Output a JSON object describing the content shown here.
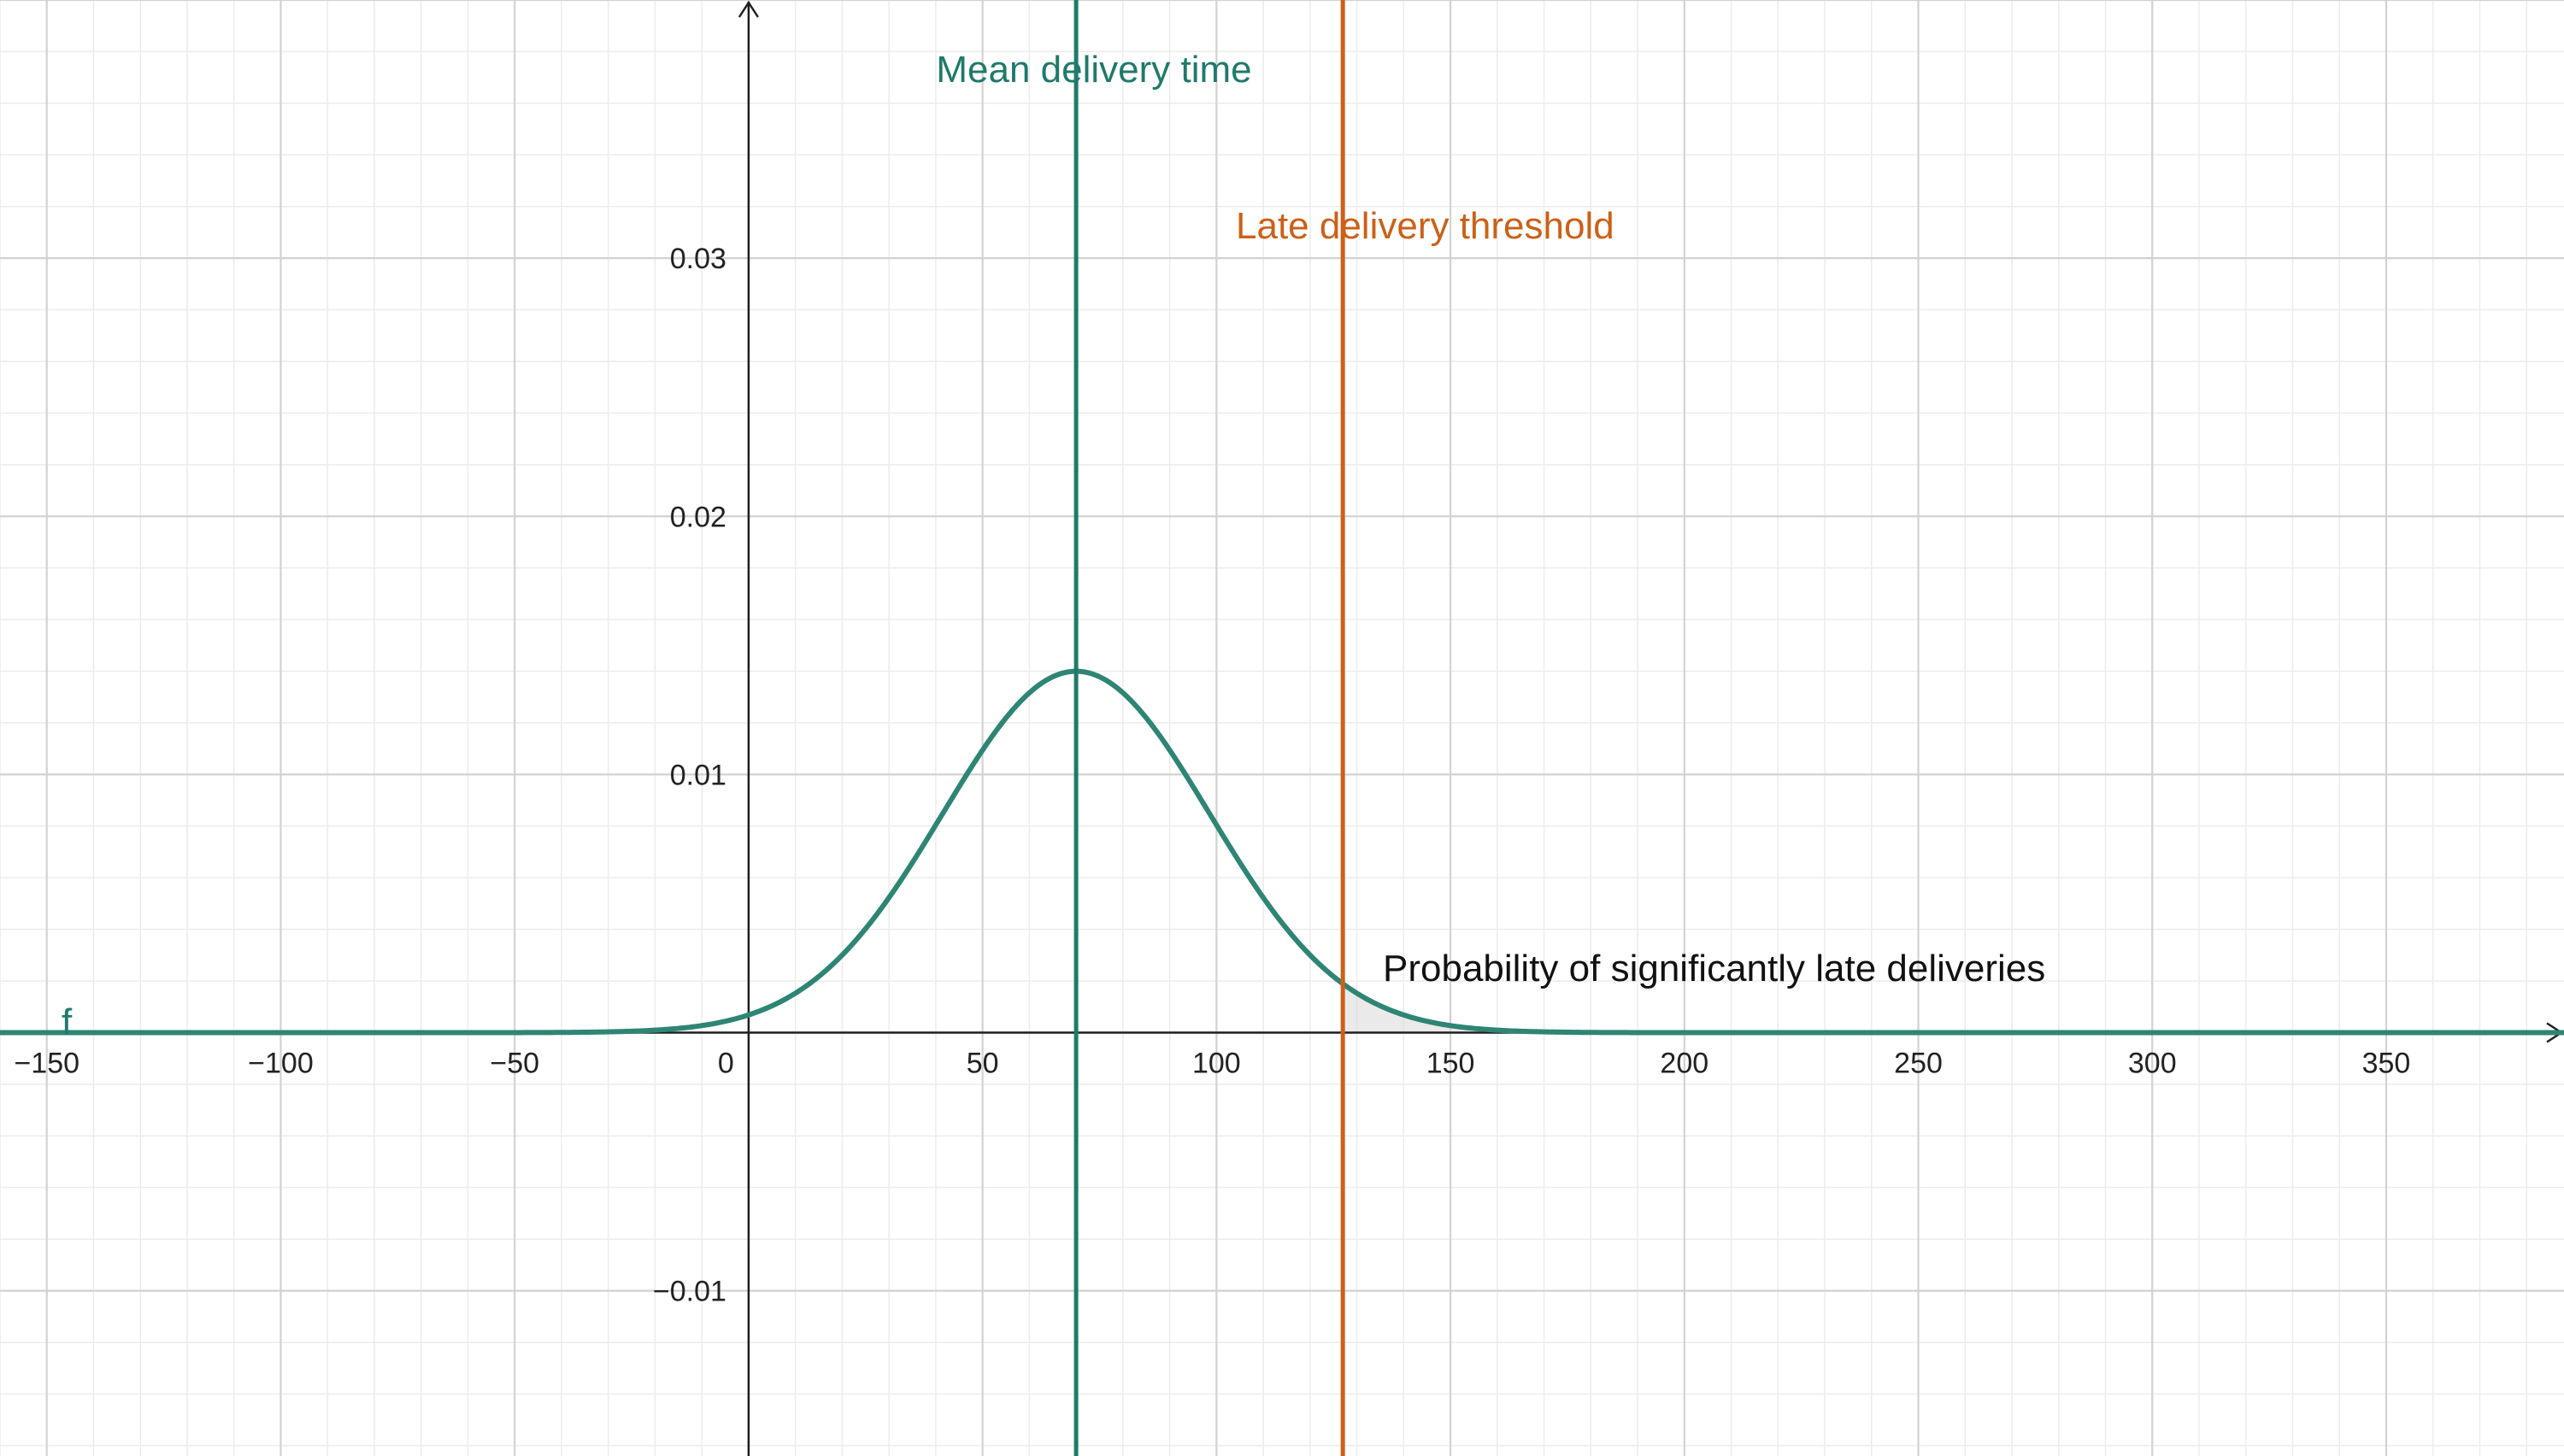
{
  "chart_data": {
    "type": "line",
    "function_label": "f",
    "distribution": {
      "mean": 70,
      "std_dev": 28.5
    },
    "xlim": [
      -160,
      388
    ],
    "ylim": [
      -0.0164,
      0.04
    ],
    "x_ticks": [
      -150,
      -100,
      -50,
      0,
      50,
      100,
      150,
      200,
      250,
      300,
      350
    ],
    "x_tick_labels": [
      "−150",
      "−100",
      "−50",
      "0",
      "50",
      "100",
      "150",
      "200",
      "250",
      "300",
      "350"
    ],
    "y_ticks": [
      0.01,
      0.02,
      0.03,
      -0.01
    ],
    "y_tick_labels": [
      "0.01",
      "0.02",
      "0.03",
      "−0.01"
    ],
    "grid": true,
    "major_grid_step": {
      "x": 50,
      "y": 0.01
    },
    "minor_grid_step": {
      "x": 10,
      "y": 0.002
    },
    "mean_line": {
      "x": 70,
      "label": "Mean delivery time",
      "color": "#1f7a6a"
    },
    "threshold_line": {
      "x": 127,
      "label": "Late delivery threshold",
      "color": "#cc6018"
    },
    "shaded_region": {
      "from_x": 127,
      "to_x": 388,
      "label": "Probability of significantly late deliveries"
    },
    "curve_color": "#2e8574",
    "axis_color": "#1f1f1f"
  }
}
